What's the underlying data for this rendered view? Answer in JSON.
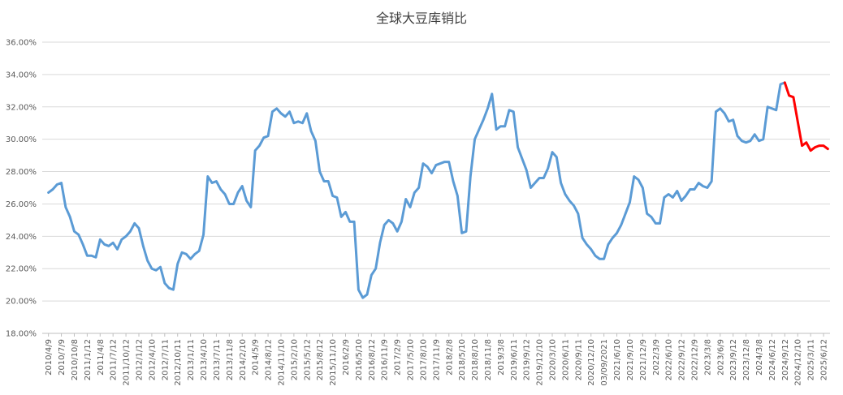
{
  "chart_data": {
    "type": "line",
    "title": "全球大豆库销比",
    "categories": [
      "2010/4/9",
      null,
      null,
      "2010/7/9",
      null,
      null,
      "2010/10/8",
      null,
      null,
      "2011/1/12",
      null,
      null,
      "2011/4/8",
      null,
      null,
      "2011/7/12",
      null,
      null,
      "2011/10/12",
      null,
      null,
      "2012/1/12",
      null,
      null,
      "2012/4/10",
      null,
      null,
      "2012/7/11",
      null,
      null,
      "2012/10/11",
      null,
      null,
      "2013/1/11",
      null,
      null,
      "2013/4/10",
      null,
      null,
      "2013/7/11",
      null,
      null,
      "2013/11/8",
      null,
      null,
      "2014/2/10",
      null,
      null,
      "2014/5/9",
      null,
      null,
      "2014/8/12",
      null,
      null,
      "2014/11/10",
      null,
      null,
      "2015/2/10",
      null,
      null,
      "2015/5/12",
      null,
      null,
      "2015/8/12",
      null,
      null,
      "2015/11/10",
      null,
      null,
      "2016/2/9",
      null,
      null,
      "2016/5/10",
      null,
      null,
      "2016/8/12",
      null,
      null,
      "2016/11/9",
      null,
      null,
      "2017/2/9",
      null,
      null,
      "2017/5/10",
      null,
      null,
      "2017/8/10",
      null,
      null,
      "2017/11/9",
      null,
      null,
      "2018/2/8",
      null,
      null,
      "2018/5/10",
      null,
      null,
      "2018/8/10",
      null,
      null,
      "2018/11/8",
      null,
      null,
      "2019/3/8",
      null,
      null,
      "2019/6/11",
      null,
      null,
      "2019/9/12",
      null,
      null,
      "2019/12/10",
      null,
      null,
      "2020/3/10",
      null,
      null,
      "2020/6/11",
      null,
      null,
      "2020/9/11",
      null,
      null,
      "2020/12/10",
      null,
      null,
      "03/09/2021",
      null,
      null,
      "2021/6/10",
      null,
      null,
      "2021/9/10",
      null,
      null,
      "2021/12/9",
      null,
      null,
      "2022/3/9",
      null,
      null,
      "2022/6/10",
      null,
      null,
      "2022/9/12",
      null,
      null,
      "2022/12/9",
      null,
      null,
      "2023/3/8",
      null,
      null,
      "2023/6/9",
      null,
      null,
      "2023/9/12",
      null,
      null,
      "2023/12/8",
      null,
      null,
      "2024/3/8",
      null,
      null,
      "2024/6/12",
      null,
      null,
      "2024/9/12",
      null,
      null,
      "2024/12/10",
      null,
      null,
      "2025/3/11",
      null,
      null,
      "2025/6/12",
      null
    ],
    "series": [
      {
        "color": "#5b9bd5",
        "values": [
          26.7,
          26.9,
          27.2,
          27.3,
          25.8,
          25.2,
          24.3,
          24.1,
          23.5,
          22.8,
          22.8,
          22.7,
          23.8,
          23.5,
          23.4,
          23.6,
          23.2,
          23.8,
          24.0,
          24.3,
          24.8,
          24.5,
          23.4,
          22.5,
          22.0,
          21.9,
          22.1,
          21.1,
          20.8,
          20.7,
          22.3,
          23.0,
          22.9,
          22.6,
          22.9,
          23.1,
          24.1,
          27.7,
          27.3,
          27.4,
          26.9,
          26.6,
          26.0,
          26.0,
          26.7,
          27.1,
          26.2,
          25.8,
          29.3,
          29.6,
          30.1,
          30.2,
          31.7,
          31.9,
          31.6,
          31.4,
          31.7,
          31.0,
          31.1,
          31.0,
          31.6,
          30.5,
          29.9,
          28.0,
          27.4,
          27.4,
          26.5,
          26.4,
          25.2,
          25.5,
          24.9,
          24.9,
          20.7,
          20.2,
          20.4,
          21.6,
          22.0,
          23.6,
          24.7,
          25.0,
          24.8,
          24.3,
          24.9,
          26.3,
          25.8,
          26.7,
          27.0,
          28.5,
          28.3,
          27.9,
          28.4,
          28.5,
          28.6,
          28.6,
          27.4,
          26.5,
          24.2,
          24.3,
          27.7,
          30.0,
          30.6,
          31.2,
          31.9,
          32.8,
          30.6,
          30.8,
          30.8,
          31.8,
          31.7,
          29.5,
          28.8,
          28.1,
          27.0,
          27.3,
          27.6,
          27.6,
          28.2,
          29.2,
          28.9,
          27.3,
          26.6,
          26.2,
          25.9,
          25.4,
          23.9,
          23.5,
          23.2,
          22.8,
          22.6,
          22.6,
          23.5,
          23.9,
          24.2,
          24.7,
          25.4,
          26.1,
          27.7,
          27.5,
          27.0,
          25.4,
          25.2,
          24.8,
          24.8,
          26.4,
          26.6,
          26.4,
          26.8,
          26.2,
          26.5,
          26.9,
          26.9,
          27.3,
          27.1,
          27.0,
          27.4,
          31.7,
          31.9,
          31.6,
          31.1,
          31.2,
          30.2,
          29.9,
          29.8,
          29.9,
          30.3,
          29.9,
          30.0,
          32.0,
          31.9,
          31.8,
          33.4,
          33.5,
          null,
          null,
          null,
          null,
          null,
          null,
          null,
          null,
          null,
          null
        ]
      },
      {
        "color": "#ff0000",
        "values": [
          null,
          null,
          null,
          null,
          null,
          null,
          null,
          null,
          null,
          null,
          null,
          null,
          null,
          null,
          null,
          null,
          null,
          null,
          null,
          null,
          null,
          null,
          null,
          null,
          null,
          null,
          null,
          null,
          null,
          null,
          null,
          null,
          null,
          null,
          null,
          null,
          null,
          null,
          null,
          null,
          null,
          null,
          null,
          null,
          null,
          null,
          null,
          null,
          null,
          null,
          null,
          null,
          null,
          null,
          null,
          null,
          null,
          null,
          null,
          null,
          null,
          null,
          null,
          null,
          null,
          null,
          null,
          null,
          null,
          null,
          null,
          null,
          null,
          null,
          null,
          null,
          null,
          null,
          null,
          null,
          null,
          null,
          null,
          null,
          null,
          null,
          null,
          null,
          null,
          null,
          null,
          null,
          null,
          null,
          null,
          null,
          null,
          null,
          null,
          null,
          null,
          null,
          null,
          null,
          null,
          null,
          null,
          null,
          null,
          null,
          null,
          null,
          null,
          null,
          null,
          null,
          null,
          null,
          null,
          null,
          null,
          null,
          null,
          null,
          null,
          null,
          null,
          null,
          null,
          null,
          null,
          null,
          null,
          null,
          null,
          null,
          null,
          null,
          null,
          null,
          null,
          null,
          null,
          null,
          null,
          null,
          null,
          null,
          null,
          null,
          null,
          null,
          null,
          null,
          null,
          null,
          null,
          null,
          null,
          null,
          null,
          null,
          null,
          null,
          null,
          null,
          null,
          null,
          null,
          null,
          null,
          33.5,
          32.7,
          32.6,
          31.1,
          29.6,
          29.8,
          29.3,
          29.5,
          29.6,
          29.6,
          29.4
        ]
      }
    ],
    "ylim": [
      18,
      36
    ],
    "yticks": [
      {
        "value": 18,
        "label": "18.00%"
      },
      {
        "value": 20,
        "label": "20.00%"
      },
      {
        "value": 22,
        "label": "22.00%"
      },
      {
        "value": 24,
        "label": "24.00%"
      },
      {
        "value": 26,
        "label": "26.00%"
      },
      {
        "value": 28,
        "label": "28.00%"
      },
      {
        "value": 30,
        "label": "30.00%"
      },
      {
        "value": 32,
        "label": "32.00%"
      },
      {
        "value": 34,
        "label": "34.00%"
      },
      {
        "value": 36,
        "label": "36.00%"
      }
    ],
    "grid": true
  }
}
